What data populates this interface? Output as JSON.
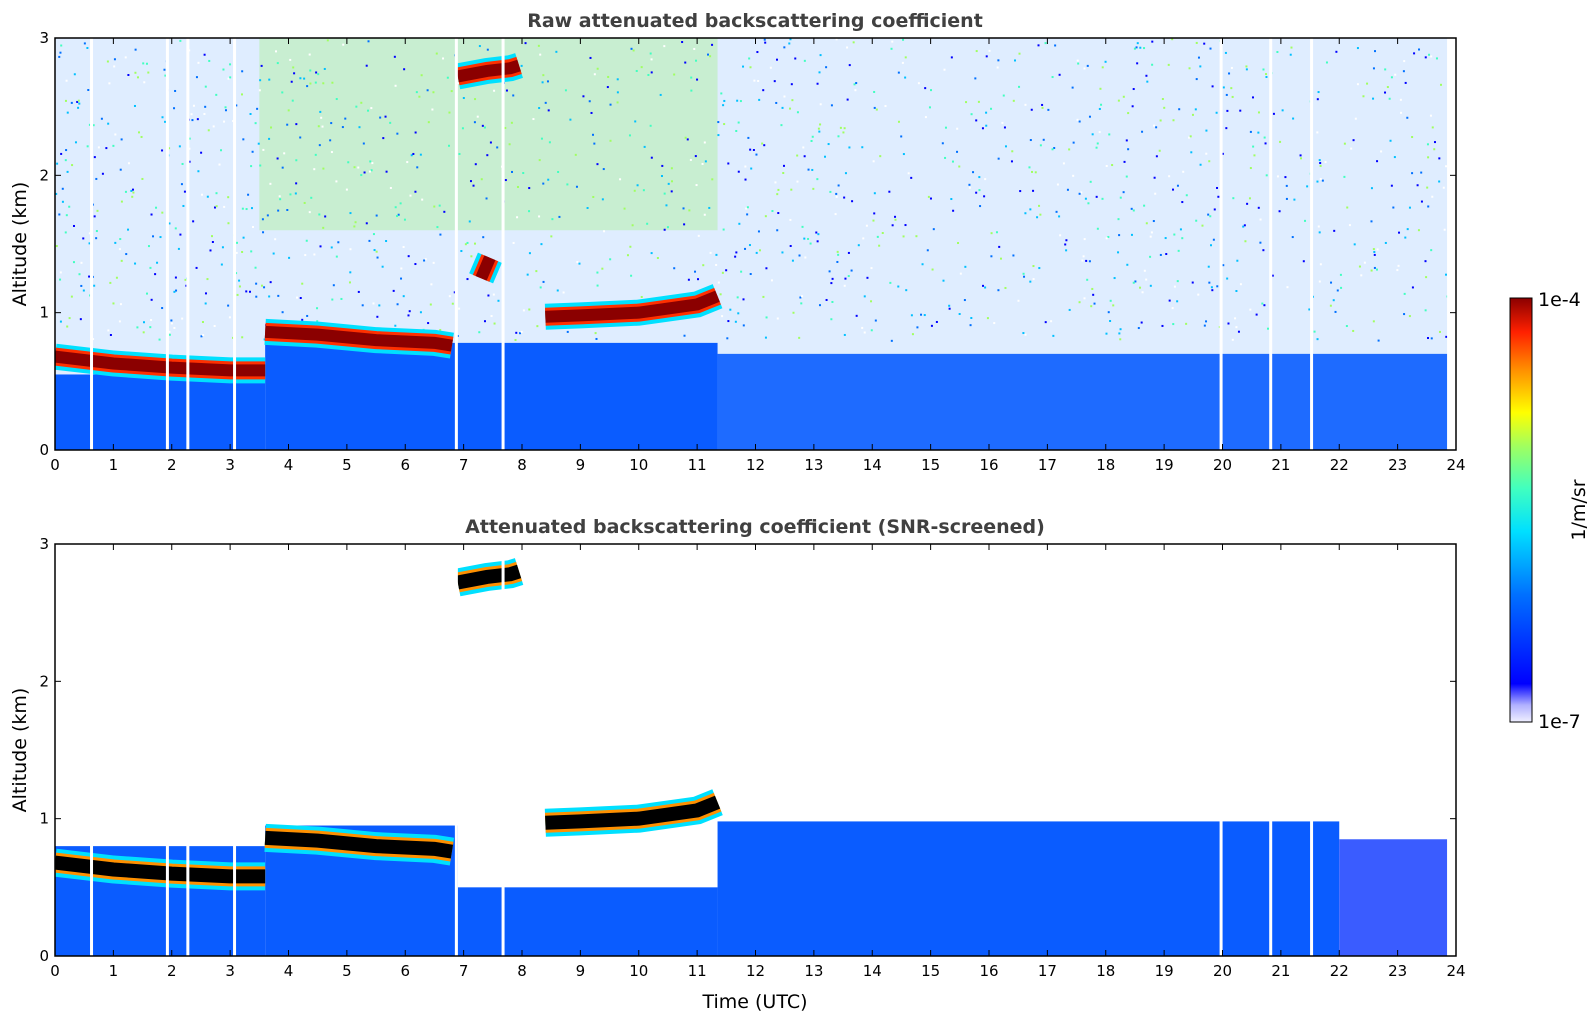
{
  "chart_data": [
    {
      "type": "heatmap",
      "title": "Raw attenuated backscattering coefficient",
      "xlabel": "",
      "ylabel": "Altitude (km)",
      "xlim": [
        0,
        24
      ],
      "ylim": [
        0,
        3
      ],
      "xticks": [
        "0",
        "1",
        "2",
        "3",
        "4",
        "5",
        "6",
        "7",
        "8",
        "9",
        "10",
        "11",
        "12",
        "13",
        "14",
        "15",
        "16",
        "17",
        "18",
        "19",
        "20",
        "21",
        "22",
        "23",
        "24"
      ],
      "yticks": [
        "0",
        "1",
        "2",
        "3"
      ],
      "screened": false,
      "layers": [
        {
          "feature": "boundary layer top (high backscatter)",
          "x": [
            0,
            1,
            2,
            3,
            3.6
          ],
          "y": [
            0.68,
            0.63,
            0.6,
            0.58,
            0.58
          ]
        },
        {
          "feature": "boundary layer top (high backscatter)",
          "x": [
            3.6,
            4.5,
            5.5,
            6.5,
            6.8
          ],
          "y": [
            0.86,
            0.84,
            0.8,
            0.78,
            0.76
          ]
        },
        {
          "feature": "cloud",
          "x": [
            8.4,
            9,
            10,
            11,
            11.35
          ],
          "y": [
            0.97,
            0.98,
            1.0,
            1.06,
            1.12
          ]
        },
        {
          "feature": "cloud",
          "x": [
            6.9,
            7.4,
            7.8,
            7.95
          ],
          "y": [
            2.72,
            2.76,
            2.78,
            2.8
          ]
        },
        {
          "feature": "cloud",
          "x": [
            7.3,
            7.45
          ],
          "y": [
            1.25,
            1.4
          ]
        }
      ],
      "data_gaps_x": [
        0.6,
        1.9,
        2.25,
        3.05,
        6.85,
        7.65,
        19.95,
        20.8,
        21.5,
        23.85
      ]
    },
    {
      "type": "heatmap",
      "title": "Attenuated backscattering coefficient (SNR-screened)",
      "xlabel": "Time (UTC)",
      "ylabel": "Altitude (km)",
      "xlim": [
        0,
        24
      ],
      "ylim": [
        0,
        3
      ],
      "xticks": [
        "0",
        "1",
        "2",
        "3",
        "4",
        "5",
        "6",
        "7",
        "8",
        "9",
        "10",
        "11",
        "12",
        "13",
        "14",
        "15",
        "16",
        "17",
        "18",
        "19",
        "20",
        "21",
        "22",
        "23",
        "24"
      ],
      "yticks": [
        "0",
        "1",
        "2",
        "3"
      ],
      "screened": true,
      "layers": [
        {
          "feature": "boundary layer top (saturated)",
          "x": [
            0,
            1,
            2,
            3,
            3.6
          ],
          "y": [
            0.68,
            0.63,
            0.6,
            0.58,
            0.58
          ]
        },
        {
          "feature": "boundary layer top (saturated)",
          "x": [
            3.6,
            4.5,
            5.5,
            6.5,
            6.8
          ],
          "y": [
            0.86,
            0.84,
            0.8,
            0.78,
            0.76
          ]
        },
        {
          "feature": "cloud (saturated)",
          "x": [
            8.4,
            9,
            10,
            11,
            11.35
          ],
          "y": [
            0.97,
            0.98,
            1.0,
            1.06,
            1.12
          ]
        },
        {
          "feature": "cloud (saturated)",
          "x": [
            6.9,
            7.4,
            7.8,
            7.95
          ],
          "y": [
            2.72,
            2.76,
            2.78,
            2.8
          ]
        }
      ],
      "data_gaps_x": [
        0.6,
        1.9,
        2.25,
        3.05,
        6.85,
        7.65,
        19.95,
        20.8,
        21.5,
        23.85
      ]
    }
  ],
  "colorbar": {
    "label": "1/m/sr",
    "max_label": "1e-4",
    "min_label": "1e-7",
    "colormap": "jet",
    "colors": [
      "#f0f0ff",
      "#b0b0ff",
      "#0000ff",
      "#0080ff",
      "#00e0ff",
      "#40ffc0",
      "#a0ff60",
      "#ffff00",
      "#ff9000",
      "#ff2000",
      "#8b0000"
    ]
  }
}
